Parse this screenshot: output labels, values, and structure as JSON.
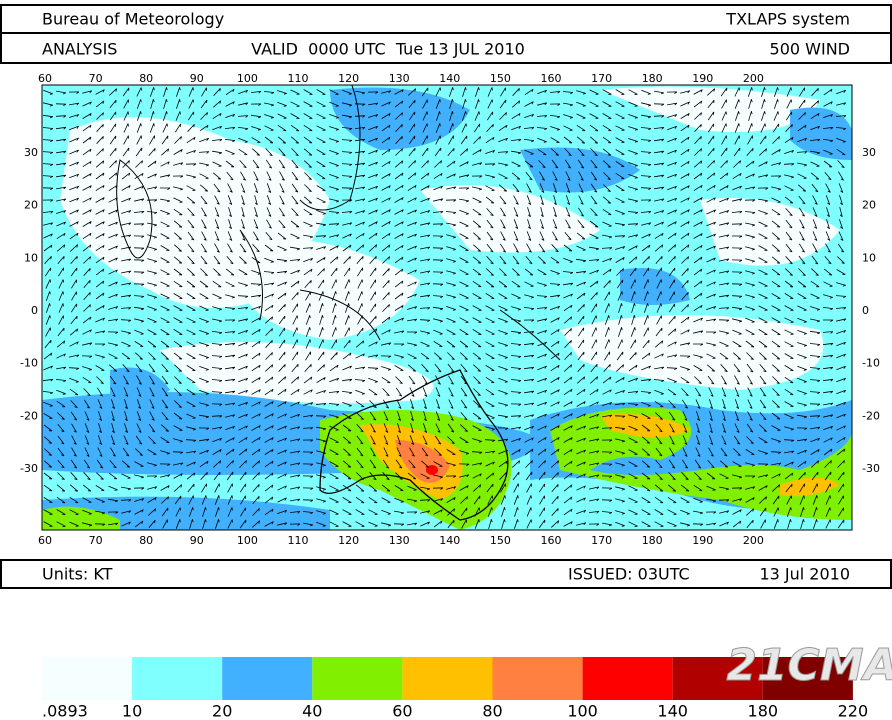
{
  "header": {
    "left": "Bureau of Meteorology",
    "right": "TXLAPS system"
  },
  "subheader": {
    "left": "ANALYSIS",
    "center": "VALID  0000 UTC  Tue 13 JUL 2010",
    "right": "500 WIND"
  },
  "map": {
    "lon_ticks": [
      60,
      70,
      80,
      90,
      100,
      110,
      120,
      130,
      140,
      150,
      160,
      170,
      180,
      190,
      200
    ],
    "lat_ticks": [
      30,
      20,
      10,
      0,
      -10,
      -20,
      -30
    ]
  },
  "footer": {
    "left": "Units: KT",
    "issued": "ISSUED: 03UTC",
    "date": "13 Jul 2010"
  },
  "legend": {
    "labels": [
      ".0893",
      "10",
      "20",
      "40",
      "60",
      "80",
      "100",
      "140",
      "180",
      "220"
    ],
    "colors": [
      "#f6ffff",
      "#80ffff",
      "#40b0ff",
      "#80f000",
      "#ffc000",
      "#ff8040",
      "#ff0000",
      "#b00000",
      "#800000"
    ]
  },
  "watermark": "21CMA"
}
